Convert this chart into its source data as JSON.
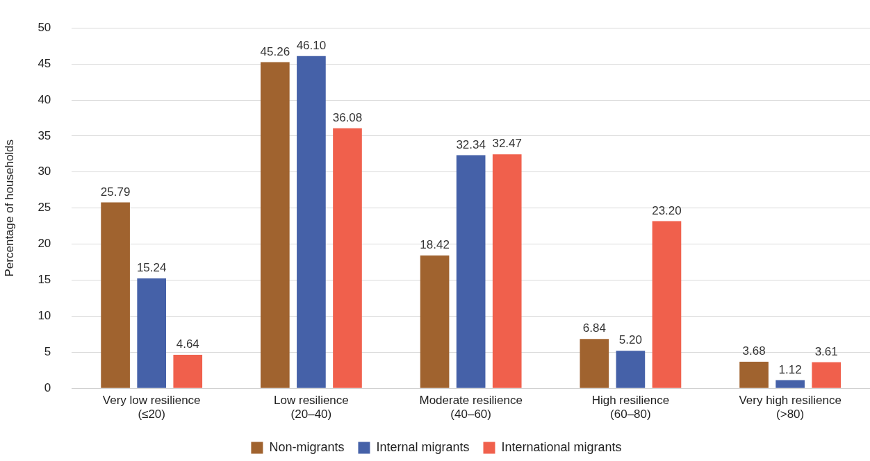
{
  "chart_data": {
    "type": "bar",
    "ylabel": "Percentage of households",
    "categories": [
      "Very low resilience\n(≤20)",
      "Low resilience\n(20–40)",
      "Moderate resilience\n(40–60)",
      "High resilience\n(60–80)",
      "Very high resilience\n(>80)"
    ],
    "series": [
      {
        "name": "Non-migrants",
        "color": "#a0632f",
        "values": [
          25.79,
          45.26,
          18.42,
          6.84,
          3.68
        ],
        "value_labels": [
          "25.79",
          "45.26",
          "18.42",
          "6.84",
          "3.68"
        ]
      },
      {
        "name": "Internal migrants",
        "color": "#4561a8",
        "values": [
          15.24,
          46.1,
          32.34,
          5.2,
          1.12
        ],
        "value_labels": [
          "15.24",
          "46.10",
          "32.34",
          "5.20",
          "1.12"
        ]
      },
      {
        "name": "International migrants",
        "color": "#f0604c",
        "values": [
          4.64,
          36.08,
          32.47,
          23.2,
          3.61
        ],
        "value_labels": [
          "4.64",
          "36.08",
          "32.47",
          "23.20",
          "3.61"
        ]
      }
    ],
    "ylim": [
      0,
      50
    ],
    "yticks": [
      0,
      5,
      10,
      15,
      20,
      25,
      30,
      35,
      40,
      45,
      50
    ],
    "grid": "y",
    "legend": "bottom"
  }
}
